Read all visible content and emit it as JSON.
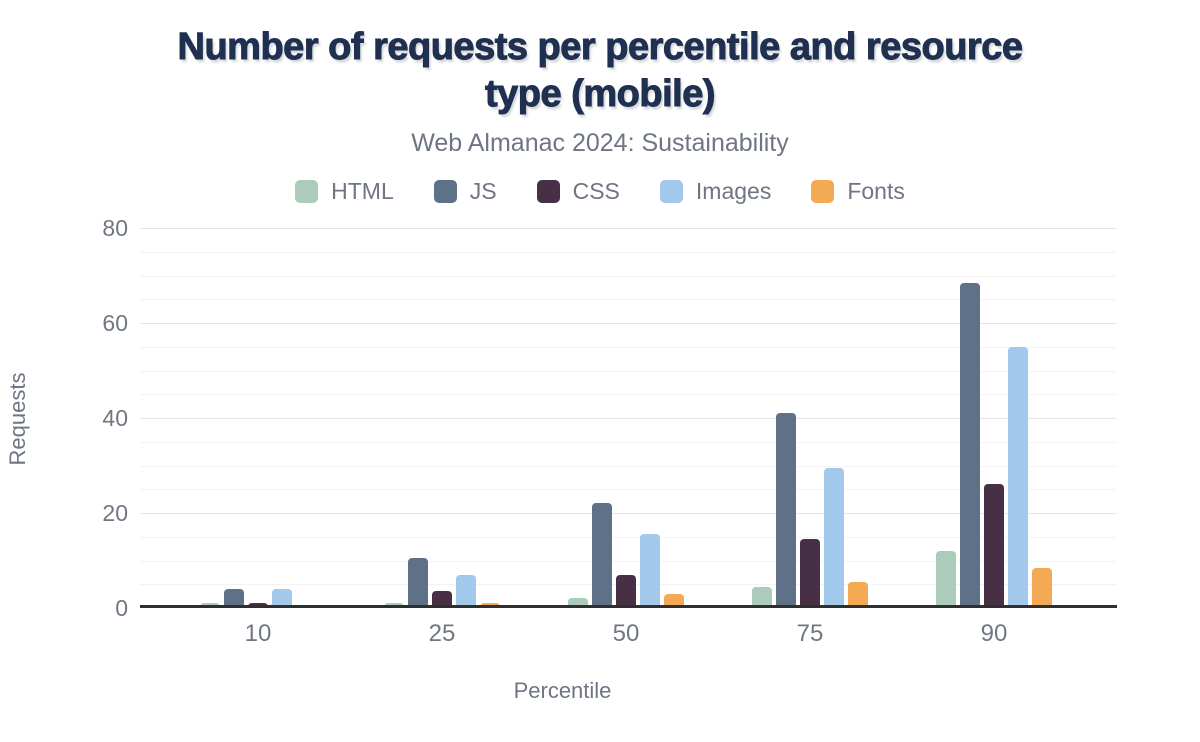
{
  "figure": {
    "title_lines": [
      "Number of requests per percentile and resource",
      "type (mobile)"
    ],
    "subtitle": "Web Almanac 2024: Sustainability",
    "xlabel": "Percentile",
    "ylabel": "Requests"
  },
  "chart_data": {
    "type": "bar",
    "title": "Number of requests per percentile and resource type (mobile)",
    "subtitle": "Web Almanac 2024: Sustainability",
    "xlabel": "Percentile",
    "ylabel": "Requests",
    "ylim": [
      0,
      80
    ],
    "y_major_ticks": [
      0,
      20,
      40,
      60,
      80
    ],
    "y_minor_interval": 5,
    "grid": "horizontal",
    "legend_position": "top",
    "categories": [
      "10",
      "25",
      "50",
      "75",
      "90"
    ],
    "series": [
      {
        "name": "HTML",
        "color": "#abccbb",
        "values": [
          1,
          1,
          2,
          4.5,
          12
        ]
      },
      {
        "name": "JS",
        "color": "#5f7189",
        "values": [
          4,
          10.5,
          22,
          41,
          68.5
        ]
      },
      {
        "name": "CSS",
        "color": "#472f46",
        "values": [
          1,
          3.5,
          7,
          14.5,
          26
        ]
      },
      {
        "name": "Images",
        "color": "#a2c8ec",
        "values": [
          4,
          7,
          15.5,
          29.5,
          55
        ]
      },
      {
        "name": "Fonts",
        "color": "#f4aa55",
        "values": [
          0,
          1,
          3,
          5.5,
          8.5
        ]
      }
    ]
  },
  "colors": {
    "title": "#1f3050",
    "text_muted": "#6e7583",
    "axis": "#2f2f2f",
    "grid_major": "#e6e6e6",
    "grid_minor": "#f3f3f3",
    "background": "#ffffff"
  }
}
